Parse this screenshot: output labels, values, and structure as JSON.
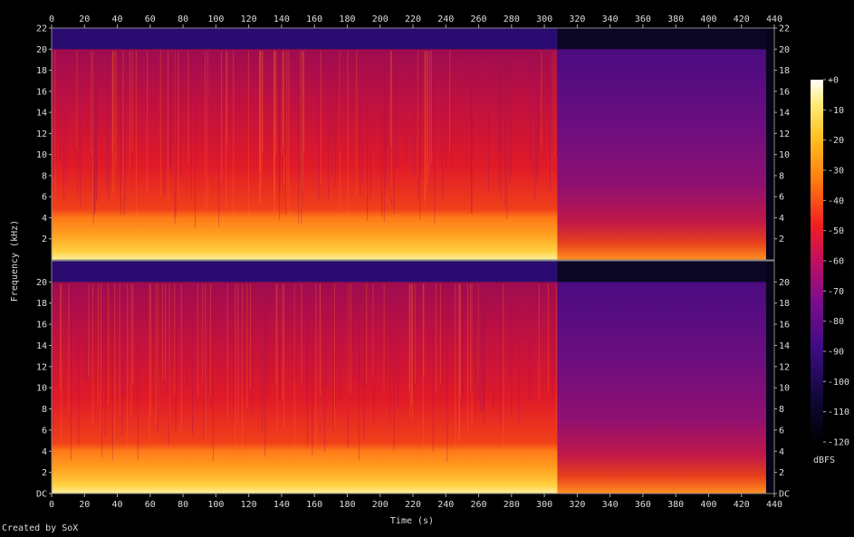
{
  "chart_data": {
    "type": "heatmap",
    "title": "",
    "xlabel": "Time (s)",
    "ylabel": "Frequency (kHz)",
    "xlim": [
      0,
      440
    ],
    "ylim": [
      0,
      22
    ],
    "x_ticks": [
      "0",
      "20",
      "40",
      "60",
      "80",
      "100",
      "120",
      "140",
      "160",
      "180",
      "200",
      "220",
      "240",
      "260",
      "280",
      "300",
      "320",
      "340",
      "360",
      "380",
      "400",
      "420",
      "440"
    ],
    "y_ticks_top": [
      "2",
      "4",
      "6",
      "8",
      "10",
      "12",
      "14",
      "16",
      "18",
      "20",
      "22"
    ],
    "y_ticks_bottom": [
      "DC",
      "2",
      "4",
      "6",
      "8",
      "10",
      "12",
      "14",
      "16",
      "18",
      "20"
    ],
    "channels": [
      "1",
      "2"
    ],
    "colorbar": {
      "label": "dBFS",
      "range": [
        -120,
        0
      ],
      "ticks": [
        "+0",
        "-10",
        "-20",
        "-30",
        "-40",
        "-50",
        "-60",
        "-70",
        "-80",
        "-90",
        "-100",
        "-110",
        "-120"
      ]
    },
    "segments": [
      {
        "t0": 0,
        "t1": 308,
        "bandwidth_khz": 20,
        "level_dbfs": -52
      },
      {
        "t0": 308,
        "t1": 435,
        "bandwidth_khz": 20,
        "level_dbfs": -80
      }
    ],
    "credit": "Created by SoX"
  }
}
